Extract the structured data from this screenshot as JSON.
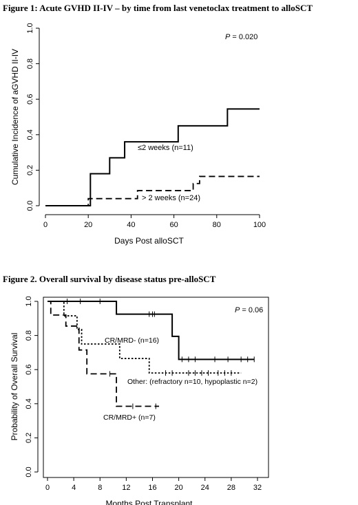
{
  "chart_data": [
    {
      "type": "line",
      "title": "Figure 1: Acute GVHD II-IV – by time from last venetoclax treatment to alloSCT",
      "xlabel": "Days Post alloSCT",
      "ylabel": "Cumulative Incidence of aGVHD II-IV",
      "xlim": [
        0,
        100
      ],
      "ylim": [
        0,
        1
      ],
      "xticks": [
        "0",
        "20",
        "40",
        "60",
        "80",
        "100"
      ],
      "yticks": [
        "0.0",
        "0.2",
        "0.4",
        "0.6",
        "0.8",
        "1.0"
      ],
      "annotation": "P = 0.020",
      "grid": false,
      "series": [
        {
          "name": "≤2 weeks (n=11)",
          "style": "solid",
          "x": [
            0,
            21,
            30,
            37,
            62,
            85,
            100
          ],
          "y": [
            0,
            0.18,
            0.27,
            0.36,
            0.45,
            0.545,
            0.545
          ]
        },
        {
          "name": "> 2 weeks (n=24)",
          "style": "dashed",
          "x": [
            0,
            20,
            43,
            69,
            72,
            100
          ],
          "y": [
            0,
            0.04,
            0.085,
            0.125,
            0.165,
            0.165
          ]
        }
      ]
    },
    {
      "type": "line",
      "title": "Figure 2. Overall survival by disease status pre-alloSCT",
      "xlabel": "Months Post Transplant",
      "ylabel": "Probability of Overall Survival",
      "xlim": [
        0,
        32
      ],
      "ylim": [
        0,
        1
      ],
      "xticks": [
        "0",
        "4",
        "8",
        "12",
        "16",
        "20",
        "24",
        "28",
        "32"
      ],
      "yticks": [
        "0.0",
        "0.2",
        "0.4",
        "0.6",
        "0.8",
        "1.0"
      ],
      "annotation": "P = 0.06",
      "grid": false,
      "series": [
        {
          "name": "CR/MRD- (n=16)",
          "style": "solid",
          "x": [
            0,
            10.5,
            19,
            20,
            31.5
          ],
          "y": [
            1.0,
            0.925,
            0.795,
            0.66,
            0.66
          ],
          "censor_x": [
            3,
            5,
            8,
            15.5,
            16,
            16.3,
            20.5,
            21.5,
            22.5,
            25.5,
            27.5,
            29.5,
            30.5,
            31.5
          ]
        },
        {
          "name": "Other: (refractory n=10, hypoplastic n=2)",
          "style": "dotted",
          "x": [
            0,
            2.5,
            4.5,
            5.2,
            11,
            15.5,
            29.5
          ],
          "y": [
            1.0,
            0.915,
            0.835,
            0.75,
            0.665,
            0.58,
            0.58
          ],
          "censor_x": [
            18,
            19,
            21.5,
            22.5,
            23.5,
            24.5,
            26,
            27,
            28
          ]
        },
        {
          "name": "CR/MRD+ (n=7)",
          "style": "dashed",
          "x": [
            0,
            0.5,
            2.8,
            4.8,
            6,
            10.5,
            17
          ],
          "y": [
            1.0,
            0.92,
            0.855,
            0.715,
            0.575,
            0.385,
            0.385
          ],
          "censor_x": [
            9.5,
            13,
            16.5
          ]
        }
      ]
    }
  ]
}
